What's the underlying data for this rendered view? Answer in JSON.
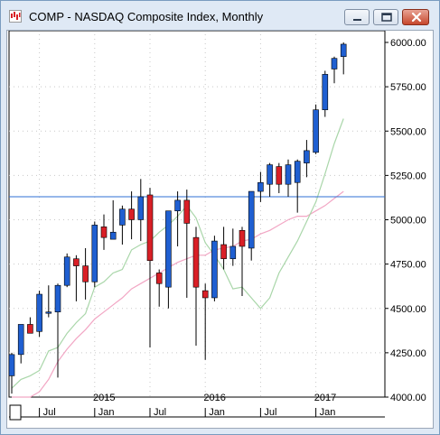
{
  "window": {
    "title": "COMP - NASDAQ Composite Index, Monthly",
    "buttons": {
      "minimize": "minimize-icon",
      "maximize": "maximize-icon",
      "close": "close-icon"
    }
  },
  "chart_data": {
    "type": "candlestick",
    "ylim": [
      4000,
      6000
    ],
    "y_ticks": [
      "6000.00",
      "5750.00",
      "5500.00",
      "5250.00",
      "5000.00",
      "4750.00",
      "4500.00",
      "4250.00",
      "4000.00"
    ],
    "x_month_labels": [
      "Jul",
      "Jan",
      "Jul",
      "Jan",
      "Jul",
      "Jan"
    ],
    "x_year_labels": [
      "2015",
      "2016",
      "2017"
    ],
    "horizontal_line": 5130,
    "colors": {
      "up": "#1f5fd1",
      "down": "#d91f26",
      "fast_ma": "#a9d6a9",
      "slow_ma": "#f2a6c4",
      "hline": "#2f6fd6"
    },
    "candles": [
      {
        "o": 4120,
        "h": 4250,
        "l": 4020,
        "c": 4240
      },
      {
        "o": 4240,
        "h": 4410,
        "l": 4190,
        "c": 4410
      },
      {
        "o": 4410,
        "h": 4450,
        "l": 4360,
        "c": 4360
      },
      {
        "o": 4370,
        "h": 4600,
        "l": 4340,
        "c": 4580
      },
      {
        "o": 4480,
        "h": 4630,
        "l": 4450,
        "c": 4480
      },
      {
        "o": 4480,
        "h": 4640,
        "l": 4110,
        "c": 4630
      },
      {
        "o": 4630,
        "h": 4810,
        "l": 4620,
        "c": 4790
      },
      {
        "o": 4780,
        "h": 4800,
        "l": 4540,
        "c": 4740
      },
      {
        "o": 4740,
        "h": 4840,
        "l": 4550,
        "c": 4650
      },
      {
        "o": 4650,
        "h": 4990,
        "l": 4620,
        "c": 4970
      },
      {
        "o": 4960,
        "h": 5030,
        "l": 4830,
        "c": 4900
      },
      {
        "o": 4890,
        "h": 5110,
        "l": 4890,
        "c": 4930
      },
      {
        "o": 4970,
        "h": 5080,
        "l": 4860,
        "c": 5060
      },
      {
        "o": 5060,
        "h": 5160,
        "l": 4890,
        "c": 5000
      },
      {
        "o": 5000,
        "h": 5230,
        "l": 4880,
        "c": 5130
      },
      {
        "o": 5140,
        "h": 5180,
        "l": 4280,
        "c": 4770
      },
      {
        "o": 4700,
        "h": 4720,
        "l": 4510,
        "c": 4640
      },
      {
        "o": 4620,
        "h": 5050,
        "l": 4500,
        "c": 5050
      },
      {
        "o": 5050,
        "h": 5160,
        "l": 4850,
        "c": 5110
      },
      {
        "o": 5110,
        "h": 5170,
        "l": 4560,
        "c": 4980
      },
      {
        "o": 4900,
        "h": 4960,
        "l": 4290,
        "c": 4620
      },
      {
        "o": 4600,
        "h": 4640,
        "l": 4210,
        "c": 4560
      },
      {
        "o": 4560,
        "h": 4910,
        "l": 4540,
        "c": 4880
      },
      {
        "o": 4860,
        "h": 4960,
        "l": 4720,
        "c": 4780
      },
      {
        "o": 4780,
        "h": 4950,
        "l": 4740,
        "c": 4850
      },
      {
        "o": 4940,
        "h": 4960,
        "l": 4570,
        "c": 4850
      },
      {
        "o": 4840,
        "h": 5160,
        "l": 4770,
        "c": 5160
      },
      {
        "o": 5160,
        "h": 5270,
        "l": 5100,
        "c": 5210
      },
      {
        "o": 5200,
        "h": 5320,
        "l": 5130,
        "c": 5310
      },
      {
        "o": 5300,
        "h": 5320,
        "l": 5150,
        "c": 5200
      },
      {
        "o": 5200,
        "h": 5340,
        "l": 5130,
        "c": 5310
      },
      {
        "o": 5210,
        "h": 5340,
        "l": 5040,
        "c": 5330
      },
      {
        "o": 5320,
        "h": 5450,
        "l": 5240,
        "c": 5390
      },
      {
        "o": 5380,
        "h": 5650,
        "l": 5370,
        "c": 5620
      },
      {
        "o": 5620,
        "h": 5840,
        "l": 5580,
        "c": 5820
      },
      {
        "o": 5850,
        "h": 5920,
        "l": 5770,
        "c": 5910
      },
      {
        "o": 5920,
        "h": 6000,
        "l": 5820,
        "c": 5990
      }
    ],
    "fast_ma": [
      4050,
      4100,
      4120,
      4150,
      4260,
      4280,
      4360,
      4420,
      4470,
      4620,
      4650,
      4700,
      4720,
      4830,
      4860,
      4880,
      4930,
      4970,
      5020,
      5080,
      5010,
      4870,
      4800,
      4720,
      4610,
      4620,
      4560,
      4500,
      4560,
      4700,
      4790,
      4880,
      4990,
      5100,
      5260,
      5430,
      5570
    ],
    "slow_ma": [
      3800,
      3900,
      3950,
      4030,
      4100,
      4200,
      4270,
      4330,
      4380,
      4440,
      4480,
      4520,
      4560,
      4610,
      4640,
      4670,
      4700,
      4730,
      4760,
      4780,
      4800,
      4800,
      4830,
      4840,
      4850,
      4880,
      4890,
      4920,
      4940,
      4970,
      5000,
      5020,
      5020,
      5050,
      5080,
      5120,
      5160
    ]
  }
}
